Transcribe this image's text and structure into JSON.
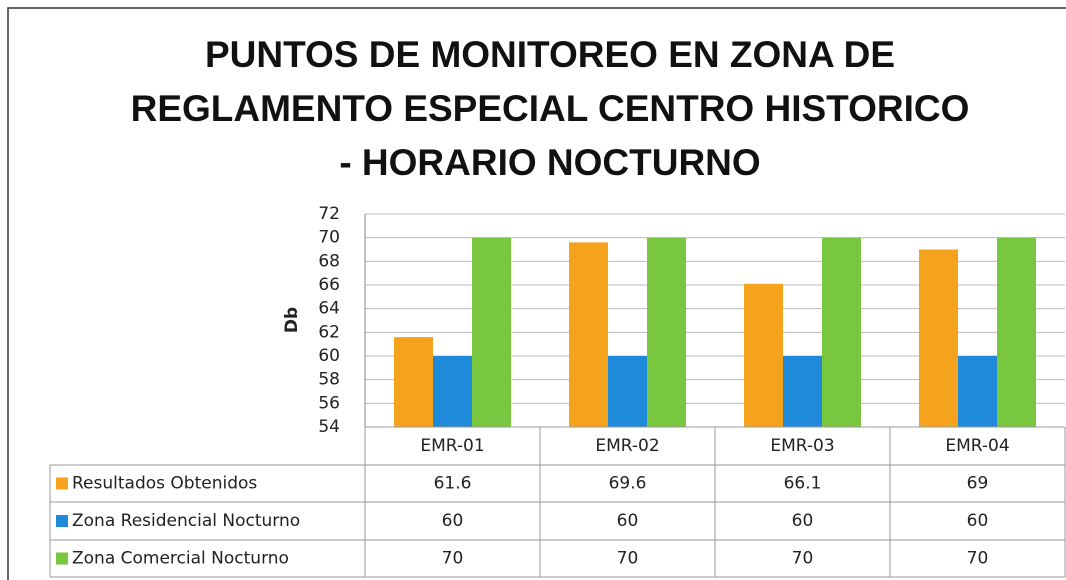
{
  "chart_data": {
    "type": "bar",
    "title": "PUNTOS DE MONITOREO EN ZONA DE REGLAMENTO ESPECIAL CENTRO HISTORICO - HORARIO NOCTURNO",
    "y_label": "Db",
    "categories": [
      "EMR-01",
      "EMR-02",
      "EMR-03",
      "EMR-04"
    ],
    "series": [
      {
        "name": "Resultados Obtenidos",
        "color": "#f5a31c",
        "values": [
          61.6,
          69.6,
          66.1,
          69
        ]
      },
      {
        "name": "Zona Residencial Nocturno",
        "color": "#1f8ad9",
        "values": [
          60,
          60,
          60,
          60
        ]
      },
      {
        "name": "Zona Comercial Nocturno",
        "color": "#78c73f",
        "values": [
          70,
          70,
          70,
          70
        ]
      }
    ],
    "ylim": [
      54,
      72
    ],
    "yticks": [
      54,
      56,
      58,
      60,
      62,
      64,
      66,
      68,
      70,
      72
    ],
    "grid": true,
    "data_table": true
  }
}
